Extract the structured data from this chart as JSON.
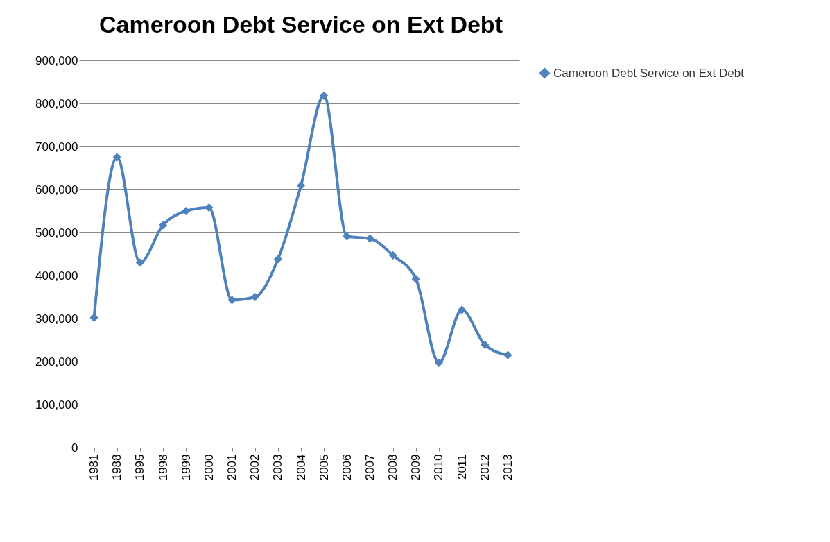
{
  "chart_data": {
    "type": "line",
    "title": "Cameroon Debt Service on Ext Debt",
    "categories": [
      "1981",
      "1988",
      "1995",
      "1998",
      "1999",
      "2000",
      "2001",
      "2002",
      "2003",
      "2004",
      "2005",
      "2006",
      "2007",
      "2008",
      "2009",
      "2010",
      "2011",
      "2012",
      "2013"
    ],
    "series": [
      {
        "name": "Cameroon Debt Service on Ext Debt",
        "color": "#4f81bd",
        "values": [
          302000,
          675000,
          430000,
          517000,
          550000,
          558000,
          343000,
          350000,
          438000,
          609000,
          818000,
          491000,
          486000,
          447000,
          392000,
          197000,
          320000,
          239000,
          215000
        ]
      }
    ],
    "ylim": [
      0,
      900000
    ],
    "yticks": [
      {
        "value": 0,
        "label": "0"
      },
      {
        "value": 100000,
        "label": "100,000"
      },
      {
        "value": 200000,
        "label": "200,000"
      },
      {
        "value": 300000,
        "label": "300,000"
      },
      {
        "value": 400000,
        "label": "400,000"
      },
      {
        "value": 500000,
        "label": "500,000"
      },
      {
        "value": 600000,
        "label": "600,000"
      },
      {
        "value": 700000,
        "label": "700,000"
      },
      {
        "value": 800000,
        "label": "800,000"
      },
      {
        "value": 900000,
        "label": "900,000"
      }
    ],
    "grid": "y",
    "legend": "right",
    "marker": "diamond",
    "line_style": "solid"
  }
}
